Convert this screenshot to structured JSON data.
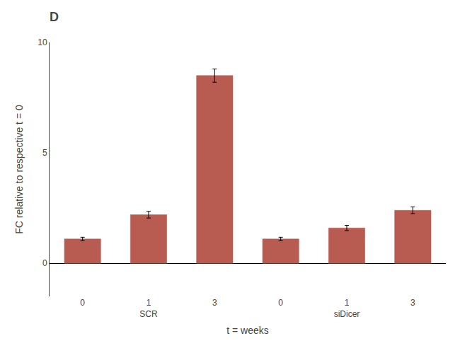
{
  "chart_data": {
    "type": "bar",
    "title": "D",
    "groups": [
      "SCR",
      "siDicer"
    ],
    "categories": [
      "0",
      "1",
      "3",
      "0",
      "1",
      "3"
    ],
    "values": [
      1.1,
      2.2,
      8.5,
      1.1,
      1.6,
      2.4
    ],
    "errors": [
      0.08,
      0.15,
      0.3,
      0.08,
      0.12,
      0.15
    ],
    "color": "#b85c52",
    "xlabel": "t = weeks",
    "ylabel": "FC relative to respective t = 0",
    "ylim": [
      -1.5,
      10
    ],
    "yticks": [
      0,
      5,
      10
    ],
    "grid": false
  }
}
